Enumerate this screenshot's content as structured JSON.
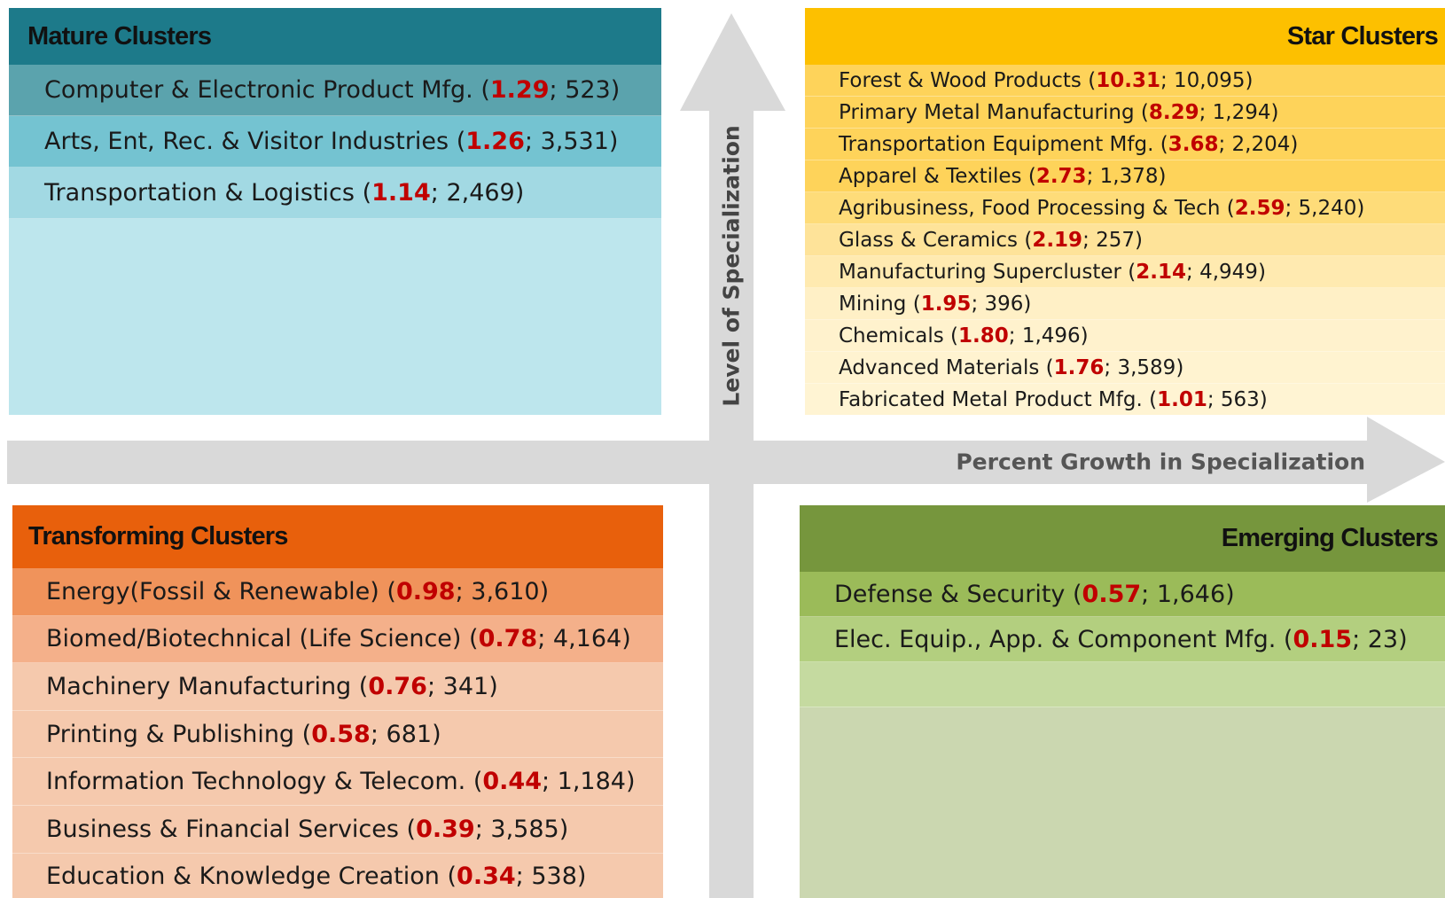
{
  "quadrants": [
    {
      "title": "Mature Clusters",
      "items": [
        {
          "name": "Computer & Electronic Product Mfg.",
          "lq": "1.29",
          "jobs": "523"
        },
        {
          "name": "Arts, Ent, Rec. & Visitor Industries",
          "lq": "1.26",
          "jobs": "3,531"
        },
        {
          "name": "Transportation & Logistics",
          "lq": "1.14",
          "jobs": "2,469"
        }
      ]
    },
    {
      "title": "Star Clusters",
      "items": [
        {
          "name": "Forest & Wood Products",
          "lq": "10.31",
          "jobs": "10,095"
        },
        {
          "name": "Primary Metal Manufacturing",
          "lq": "8.29",
          "jobs": "1,294"
        },
        {
          "name": "Transportation Equipment Mfg.",
          "lq": "3.68",
          "jobs": "2,204"
        },
        {
          "name": "Apparel & Textiles",
          "lq": "2.73",
          "jobs": "1,378"
        },
        {
          "name": "Agribusiness, Food Processing & Tech",
          "lq": "2.59",
          "jobs": "5,240"
        },
        {
          "name": "Glass & Ceramics",
          "lq": "2.19",
          "jobs": "257"
        },
        {
          "name": "Manufacturing Supercluster",
          "lq": "2.14",
          "jobs": "4,949"
        },
        {
          "name": "Mining",
          "lq": "1.95",
          "jobs": "396"
        },
        {
          "name": "Chemicals",
          "lq": "1.80",
          "jobs": "1,496"
        },
        {
          "name": "Advanced Materials",
          "lq": "1.76",
          "jobs": "3,589"
        },
        {
          "name": "Fabricated Metal Product Mfg.",
          "lq": "1.01",
          "jobs": "563"
        }
      ]
    },
    {
      "title": "Transforming Clusters",
      "items": [
        {
          "name": "Energy(Fossil & Renewable)",
          "lq": "0.98",
          "jobs": "3,610"
        },
        {
          "name": "Biomed/Biotechnical (Life Science)",
          "lq": "0.78",
          "jobs": "4,164"
        },
        {
          "name": "Machinery Manufacturing",
          "lq": "0.76",
          "jobs": "341"
        },
        {
          "name": "Printing & Publishing",
          "lq": "0.58",
          "jobs": "681"
        },
        {
          "name": "Information Technology & Telecom.",
          "lq": "0.44",
          "jobs": "1,184"
        },
        {
          "name": "Business & Financial Services",
          "lq": "0.39",
          "jobs": "3,585"
        },
        {
          "name": "Education & Knowledge Creation",
          "lq": "0.34",
          "jobs": "538"
        }
      ]
    },
    {
      "title": "Emerging Clusters",
      "items": [
        {
          "name": "Defense & Security",
          "lq": "0.57",
          "jobs": "1,646"
        },
        {
          "name": "Elec. Equip., App. & Component Mfg.",
          "lq": "0.15",
          "jobs": "23"
        }
      ]
    }
  ],
  "axes": {
    "vertical": "Level of Specialization",
    "horizontal": "Percent Growth in Specialization"
  }
}
